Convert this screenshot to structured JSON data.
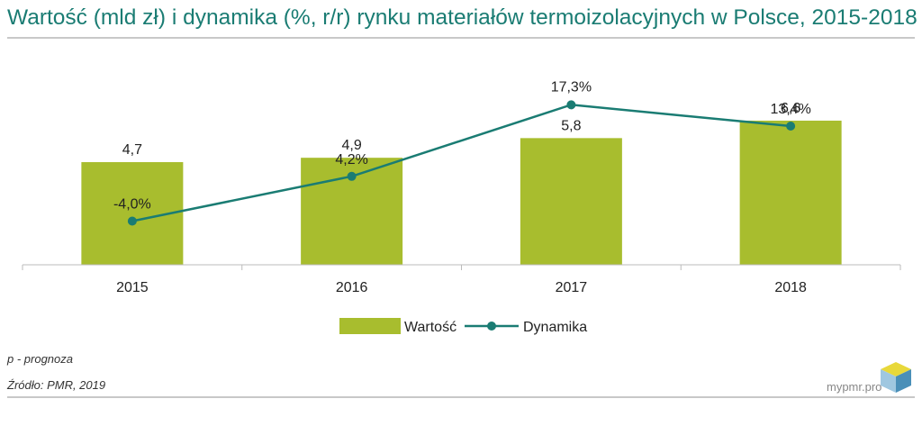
{
  "title": "Wartość (mld zł) i dynamika (%, r/r) rynku materiałów termoizolacyjnych w Polsce, 2015-2018",
  "chart_data": {
    "type": "bar",
    "title": "Wartość (mld zł) i dynamika (%, r/r) rynku materiałów termoizolacyjnych w Polsce, 2015-2018",
    "categories": [
      "2015",
      "2016",
      "2017",
      "2018"
    ],
    "series": [
      {
        "name": "Wartość",
        "type": "bar",
        "values": [
          4.7,
          4.9,
          5.8,
          6.6
        ],
        "labels": [
          "4,7",
          "4,9",
          "5,8",
          "6,6"
        ],
        "color": "#a8bd2e"
      },
      {
        "name": "Dynamika",
        "type": "line",
        "values": [
          -4.0,
          4.2,
          17.3,
          13.4
        ],
        "labels": [
          "-4,0%",
          "4,2%",
          "17,3%",
          "13,4%"
        ],
        "color": "#1a7c73"
      }
    ],
    "ylim_value": [
      0,
      8
    ],
    "ylim_dynamics": [
      -12,
      20
    ],
    "legend": "bottom-center",
    "grid": false
  },
  "notes": {
    "forecast": "p - prognoza",
    "source": "Źródło: PMR, 2019"
  },
  "brand": "mypmr.pro"
}
